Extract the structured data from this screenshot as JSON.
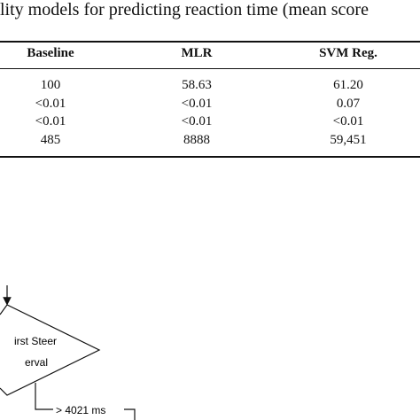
{
  "caption": "lity models for predicting reaction time (mean score",
  "table": {
    "header": [
      "Baseline",
      "MLR",
      "SVM Reg."
    ],
    "rows": [
      [
        "100",
        "58.63",
        "61.20"
      ],
      [
        "<0.01",
        "<0.01",
        "0.07"
      ],
      [
        "<0.01",
        "<0.01",
        "<0.01"
      ],
      [
        "485",
        "8888",
        "59,451"
      ]
    ]
  },
  "diagram": {
    "node_lines": [
      "irst Steer",
      "erval"
    ],
    "edge_label": "> 4021 ms"
  }
}
